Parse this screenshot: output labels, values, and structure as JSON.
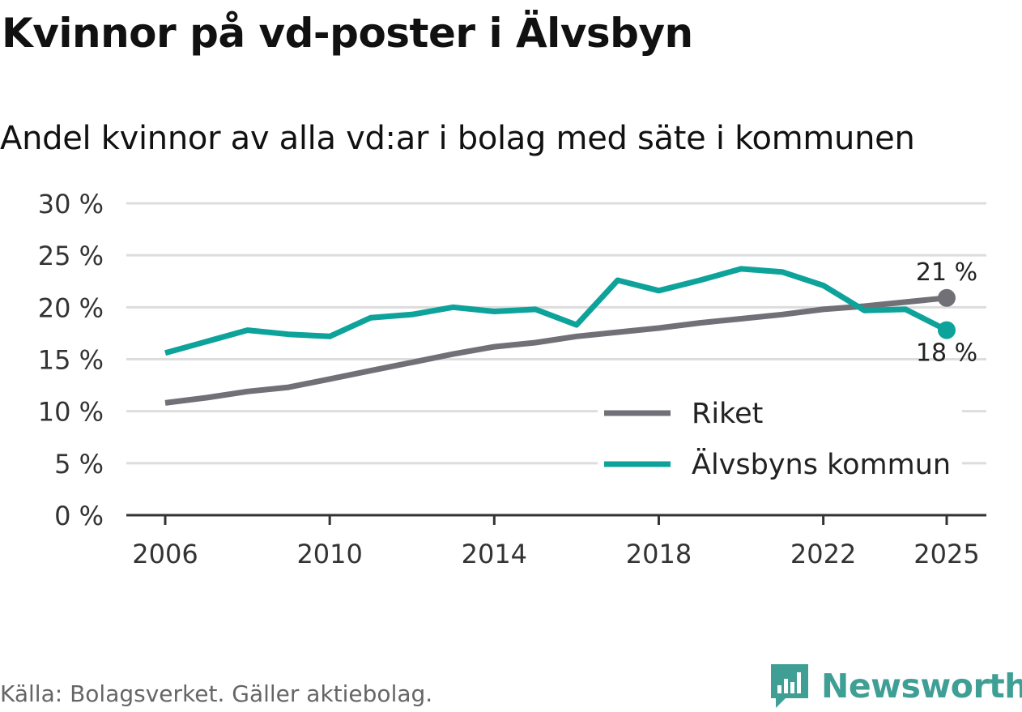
{
  "header": {
    "title": "Kvinnor på vd-poster i Älvsbyn",
    "subtitle": "Andel kvinnor av alla vd:ar i bolag med säte i kommunen"
  },
  "footer": {
    "source": "Källa: Bolagsverket. Gäller aktiebolag.",
    "brand": "Newsworthy"
  },
  "colors": {
    "riket": "#717077",
    "kommun": "#0ea39a",
    "grid": "#dddddd",
    "axis": "#333333",
    "text": "#333333",
    "brand": "#3f9f95"
  },
  "chart_data": {
    "type": "line",
    "title": "Kvinnor på vd-poster i Älvsbyn",
    "subtitle": "Andel kvinnor av alla vd:ar i bolag med säte i kommunen",
    "xlabel": "",
    "ylabel": "",
    "x": [
      2006,
      2007,
      2008,
      2009,
      2010,
      2011,
      2012,
      2013,
      2014,
      2015,
      2016,
      2017,
      2018,
      2019,
      2020,
      2021,
      2022,
      2023,
      2024,
      2025
    ],
    "xlim": [
      2005,
      2026
    ],
    "ylim": [
      0,
      30
    ],
    "x_ticks": [
      2006,
      2010,
      2014,
      2018,
      2022,
      2025
    ],
    "y_ticks": [
      0,
      5,
      10,
      15,
      20,
      25,
      30
    ],
    "y_tick_labels": [
      "0 %",
      "5 %",
      "10 %",
      "15 %",
      "20 %",
      "25 %",
      "30 %"
    ],
    "grid": true,
    "legend_position": "bottom-right",
    "series": [
      {
        "name": "Riket",
        "color": "#717077",
        "values": [
          10.8,
          11.3,
          11.9,
          12.3,
          13.1,
          13.9,
          14.7,
          15.5,
          16.2,
          16.6,
          17.2,
          17.6,
          18.0,
          18.5,
          18.9,
          19.3,
          19.8,
          20.1,
          20.5,
          20.9
        ],
        "end_label": "21 %"
      },
      {
        "name": "Älvsbyns kommun",
        "color": "#0ea39a",
        "values": [
          15.6,
          16.7,
          17.8,
          17.4,
          17.2,
          19.0,
          19.3,
          20.0,
          19.6,
          19.8,
          18.3,
          22.6,
          21.6,
          22.6,
          23.7,
          23.4,
          22.1,
          19.7,
          19.8,
          17.8
        ],
        "end_label": "18 %"
      }
    ]
  }
}
